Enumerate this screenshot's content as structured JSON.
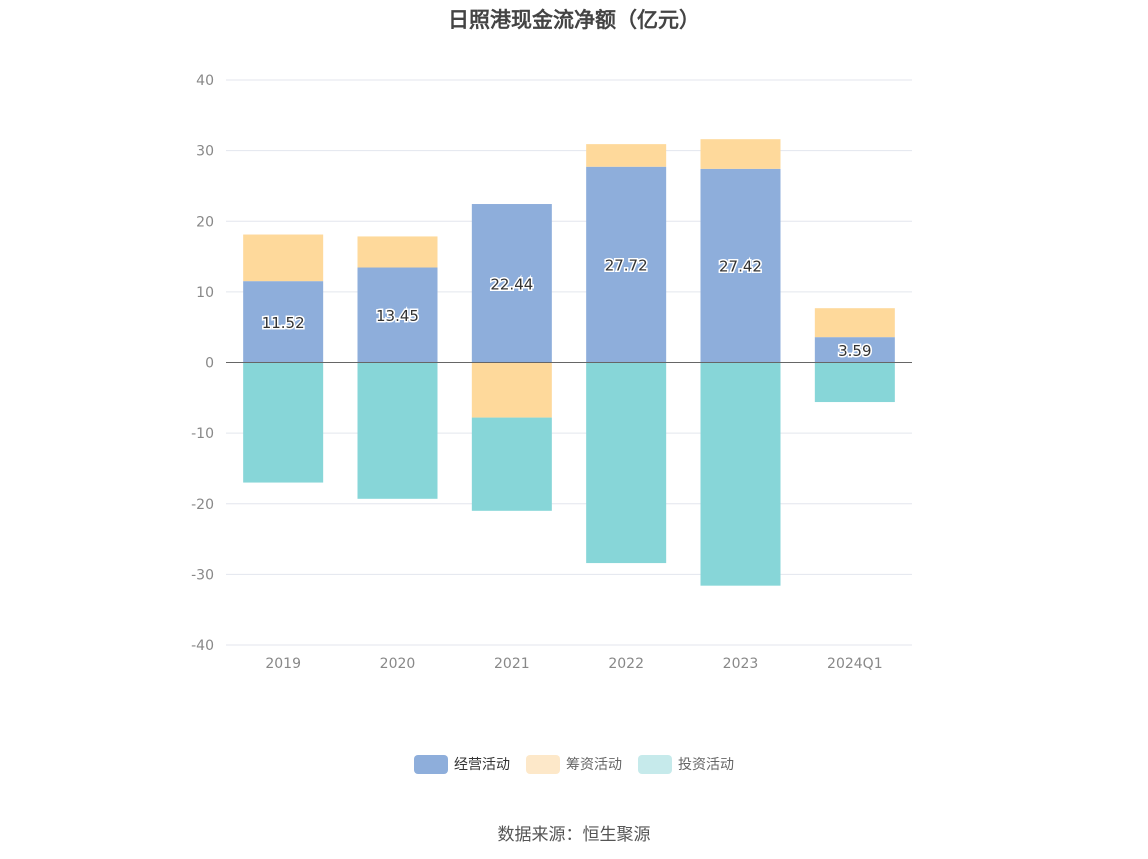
{
  "chart_data": {
    "type": "bar",
    "stacked": true,
    "title": "日照港现金流净额（亿元）",
    "categories": [
      "2019",
      "2020",
      "2021",
      "2022",
      "2023",
      "2024Q1"
    ],
    "series": [
      {
        "name": "经营活动",
        "color": "#8eaedb",
        "values": [
          11.52,
          13.45,
          22.44,
          27.72,
          27.42,
          3.59
        ],
        "show_labels": true
      },
      {
        "name": "筹资活动",
        "color": "#fed99b",
        "values": [
          6.6,
          4.4,
          -7.8,
          3.2,
          4.2,
          4.1
        ],
        "show_labels": false
      },
      {
        "name": "投资活动",
        "color": "#87d6d8",
        "values": [
          -17.0,
          -19.3,
          -13.2,
          -28.4,
          -31.6,
          -5.6
        ],
        "show_labels": false
      }
    ],
    "legend_colors": [
      "#8eaedb",
      "#fde8c9",
      "#c6eaeb"
    ],
    "ylim": [
      -40,
      40
    ],
    "yticks": [
      -40,
      -30,
      -20,
      -10,
      0,
      10,
      20,
      30,
      40
    ],
    "xlabel": "",
    "ylabel": "",
    "grid": true,
    "legend_position": "bottom"
  },
  "source_text": "数据来源：恒生聚源"
}
